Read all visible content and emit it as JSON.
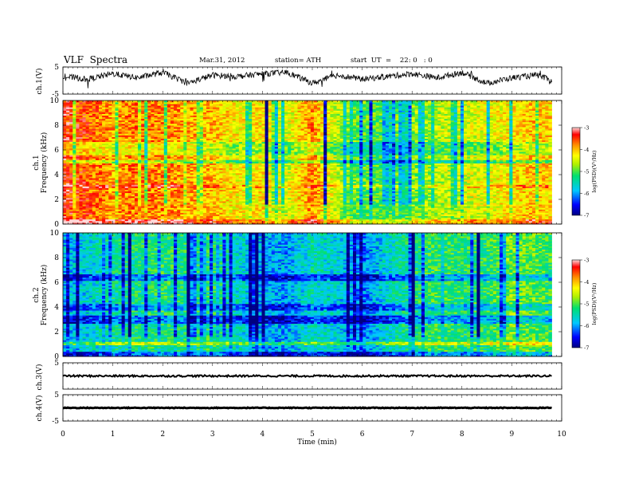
{
  "header": {
    "title": "VLF  Spectra",
    "date": "Mar.31, 2012",
    "station": "station= ATH",
    "start": "start  UT  =    22: 0   : 0"
  },
  "colors": {
    "axis": "#000000",
    "colormap": [
      "#000080",
      "#0000ff",
      "#00d0ff",
      "#00e070",
      "#b0f000",
      "#ffff00",
      "#ff9000",
      "#ff0000",
      "#ffd0d0"
    ]
  },
  "chart_data": [
    {
      "type": "line",
      "panel": "ch.1",
      "ylabel": "ch.1(V)",
      "ylim": [
        -5,
        5
      ],
      "yticks": [
        "5",
        "-5"
      ],
      "xlim": [
        0,
        10
      ],
      "description_values": "noisy waveform oscillating roughly between -4 and 4 V",
      "x": [
        0,
        0.5,
        1,
        1.5,
        2,
        2.5,
        3,
        3.5,
        4,
        4.5,
        5,
        5.5,
        6,
        6.5,
        7,
        7.5,
        8,
        8.5,
        9,
        9.5,
        9.8
      ],
      "y": [
        1.5,
        0.5,
        2.5,
        1,
        3,
        -1,
        2,
        1.5,
        2.5,
        3,
        -1,
        2,
        0.5,
        1.5,
        2.5,
        1,
        3,
        -1,
        1,
        2,
        0
      ]
    },
    {
      "type": "heatmap",
      "panel": "ch.1 spectrogram",
      "ylabel_lines": [
        "ch.1",
        "Frequency  (kHz)"
      ],
      "ylim": [
        0,
        10
      ],
      "yticks": [
        "0",
        "2",
        "4",
        "6",
        "8",
        "10"
      ],
      "xlim": [
        0,
        10
      ],
      "colorbar": {
        "label": "log(PSD)(V²/Hz)",
        "range": [
          -7,
          -3
        ],
        "ticks": [
          "-3",
          "-4",
          "-5",
          "-6",
          "-7"
        ]
      },
      "level_profile": [
        [
          0,
          -3.4
        ],
        [
          0.5,
          -3.6
        ],
        [
          1,
          -3.9
        ],
        [
          1.5,
          -3.7
        ],
        [
          2,
          -3.8
        ],
        [
          2.5,
          -3.9
        ],
        [
          3,
          -4.0
        ],
        [
          3.5,
          -4.3
        ],
        [
          4,
          -4.2
        ],
        [
          4.5,
          -4.5
        ],
        [
          5,
          -3.8
        ],
        [
          5.5,
          -4.6
        ],
        [
          6,
          -5.0
        ],
        [
          6.5,
          -5.0
        ],
        [
          7,
          -4.8
        ],
        [
          7.5,
          -4.6
        ],
        [
          8,
          -4.5
        ],
        [
          8.5,
          -4.4
        ],
        [
          9,
          -4.2
        ],
        [
          9.5,
          -4.0
        ],
        [
          10,
          -4.2
        ]
      ]
    },
    {
      "type": "heatmap",
      "panel": "ch.2 spectrogram",
      "ylabel_lines": [
        "ch.2",
        "Frequency  (kHz)"
      ],
      "ylim": [
        0,
        10
      ],
      "yticks": [
        "0",
        "2",
        "4",
        "6",
        "8",
        "10"
      ],
      "xlim": [
        0,
        10
      ],
      "colorbar": {
        "label": "log(PSD)(V²/Hz)",
        "range": [
          -7,
          -3
        ],
        "ticks": [
          "-3",
          "-4",
          "-5",
          "-6",
          "-7"
        ]
      },
      "level_profile": [
        [
          0,
          -5.9
        ],
        [
          0.5,
          -5.7
        ],
        [
          1,
          -5.4
        ],
        [
          1.5,
          -5.3
        ],
        [
          2,
          -5.2
        ],
        [
          2.5,
          -5.3
        ],
        [
          3,
          -5.2
        ],
        [
          3.5,
          -5.6
        ],
        [
          4,
          -5.9
        ],
        [
          4.5,
          -6.0
        ],
        [
          5,
          -5.5
        ],
        [
          5.5,
          -5.7
        ],
        [
          6,
          -6.2
        ],
        [
          6.5,
          -5.6
        ],
        [
          7,
          -5.3
        ],
        [
          7.5,
          -5.1
        ],
        [
          8,
          -5.2
        ],
        [
          8.5,
          -5.2
        ],
        [
          9,
          -4.8
        ],
        [
          9.5,
          -5.0
        ],
        [
          10,
          -5.2
        ]
      ]
    },
    {
      "type": "line",
      "panel": "ch.3",
      "ylabel": "ch.3(V)",
      "ylim": [
        -5,
        5
      ],
      "yticks": [
        "5"
      ],
      "xlim": [
        0,
        10
      ],
      "x": [
        0,
        9.8
      ],
      "y": [
        0,
        0
      ]
    },
    {
      "type": "line",
      "panel": "ch.4",
      "ylabel": "ch.4(V)",
      "ylim": [
        -5,
        5
      ],
      "yticks": [
        "5",
        "-5"
      ],
      "xlim": [
        0,
        10
      ],
      "x": [
        0,
        9.8
      ],
      "y": [
        0,
        0
      ]
    }
  ],
  "xaxis": {
    "label": "Time  (min)",
    "ticks": [
      "0",
      "1",
      "2",
      "3",
      "4",
      "5",
      "6",
      "7",
      "8",
      "9",
      "10"
    ]
  }
}
